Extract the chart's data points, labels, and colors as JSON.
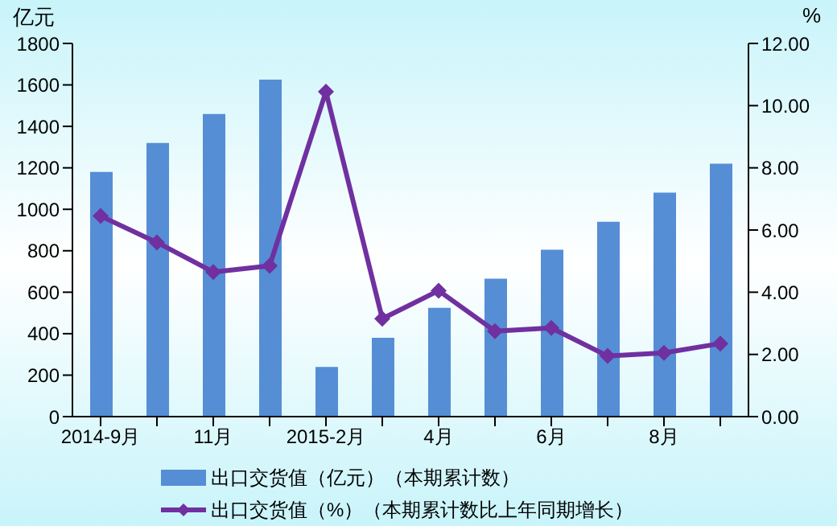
{
  "chart_data": {
    "type": "bar",
    "ylabel": "亿元",
    "y2label": "%",
    "categories": [
      "2014-9月",
      null,
      "11月",
      null,
      "2015-2月",
      null,
      "4月",
      null,
      "6月",
      null,
      "8月",
      null
    ],
    "series": [
      {
        "name": "出口交货值（亿元）（本期累计数）",
        "color": "#558ed5",
        "values": [
          1180,
          1320,
          1460,
          1625,
          240,
          380,
          525,
          665,
          805,
          940,
          1080,
          1220
        ]
      },
      {
        "name": "出口交货值（%）（本期累计数比上年同期增长）",
        "type": "line",
        "axis": "y2",
        "color": "#7030a0",
        "marker": "diamond",
        "values": [
          6.45,
          5.6,
          4.65,
          4.85,
          10.45,
          3.15,
          4.05,
          2.75,
          2.85,
          1.95,
          2.05,
          2.35
        ]
      }
    ],
    "ylim": [
      0,
      1800
    ],
    "yticks": [
      0,
      200,
      400,
      600,
      800,
      1000,
      1200,
      1400,
      1600,
      1800
    ],
    "y2lim": [
      0,
      12
    ],
    "y2ticks": [
      {
        "value": 0,
        "label": "0.00"
      },
      {
        "value": 2,
        "label": "2.00"
      },
      {
        "value": 4,
        "label": "4.00"
      },
      {
        "value": 6,
        "label": "6.00"
      },
      {
        "value": 8,
        "label": "8.00"
      },
      {
        "value": 10,
        "label": "10.00"
      },
      {
        "value": 12,
        "label": "12.00"
      }
    ],
    "grid": false,
    "legend": "bottom"
  }
}
